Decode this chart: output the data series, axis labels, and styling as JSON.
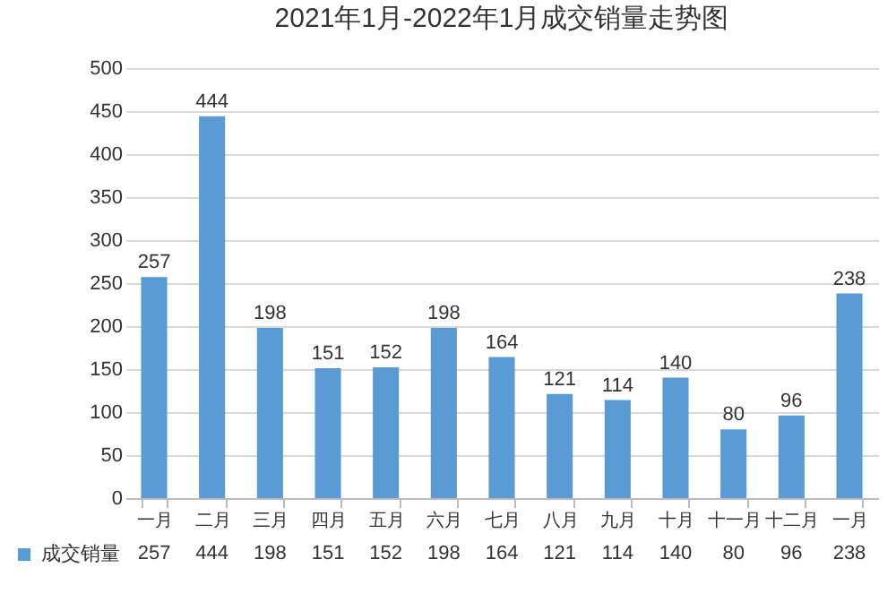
{
  "chart_data": {
    "type": "bar",
    "title": "2021年1月-2022年1月成交销量走势图",
    "categories": [
      "一月",
      "二月",
      "三月",
      "四月",
      "五月",
      "六月",
      "七月",
      "八月",
      "九月",
      "十月",
      "十一月",
      "十二月",
      "一月"
    ],
    "series": [
      {
        "name": "成交销量",
        "color": "#5b9bd5",
        "values": [
          257,
          444,
          198,
          151,
          152,
          198,
          164,
          121,
          114,
          140,
          80,
          96,
          238
        ],
        "value_labels": [
          "257",
          "444",
          "198",
          "151",
          "152",
          "198",
          "164",
          "121",
          "114",
          "140",
          "80",
          "96",
          "238"
        ]
      }
    ],
    "ylim": [
      0,
      500
    ],
    "yticks": [
      0,
      50,
      100,
      150,
      200,
      250,
      300,
      350,
      400,
      450,
      500
    ],
    "grid": "y",
    "legend": "bottom",
    "data_labels": true
  }
}
